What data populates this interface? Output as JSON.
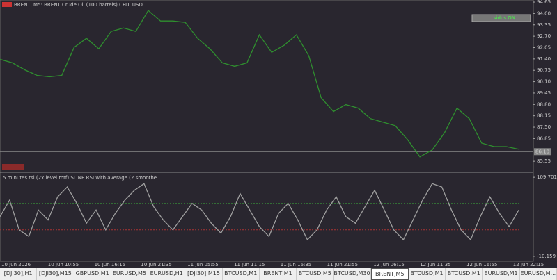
{
  "window_title": "BRENT, M5:  BRENT Crude Oil (100 barrels) CFD, USD",
  "button": "sidus  ON",
  "chart_data": [
    {
      "type": "line",
      "color": "#2f8f2f",
      "values": [
        91.38,
        91.18,
        90.78,
        90.46,
        90.38,
        90.46,
        92.06,
        92.58,
        91.98,
        92.97,
        93.17,
        92.97,
        94.17,
        93.57,
        93.57,
        93.49,
        92.58,
        91.98,
        91.18,
        90.98,
        91.18,
        92.78,
        91.78,
        92.18,
        92.78,
        91.58,
        89.19,
        88.39,
        88.79,
        88.59,
        87.99,
        87.79,
        87.59,
        86.79,
        85.8,
        86.2,
        87.19,
        88.59,
        87.99,
        86.59,
        86.39,
        86.39,
        86.24
      ],
      "ylim": [
        84.92,
        94.77
      ],
      "yticks": [
        94.65,
        {
          "value": 94.0,
          "label": "94.00"
        },
        93.35,
        {
          "value": 92.7,
          "label": "92.70"
        },
        92.05,
        {
          "value": 91.4,
          "label": "91.40"
        },
        90.75,
        {
          "value": 90.1,
          "label": "90.10"
        },
        89.45,
        {
          "value": 88.8,
          "label": "88.80"
        },
        88.15,
        {
          "value": 87.5,
          "label": "87.50"
        },
        86.85,
        85.55
      ],
      "current_price": {
        "value": 86.1,
        "label": "86.10"
      }
    },
    {
      "type": "line",
      "title": "5 minutes rsi (2x level mtf) SLINE RSI  with average (2 smoothe",
      "color": "#a0a0a0",
      "values": [
        50,
        75,
        30,
        20,
        60,
        45,
        80,
        95,
        70,
        40,
        60,
        30,
        55,
        75,
        90,
        100,
        65,
        45,
        30,
        50,
        70,
        60,
        40,
        25,
        50,
        85,
        60,
        35,
        20,
        55,
        70,
        45,
        15,
        30,
        60,
        80,
        50,
        40,
        65,
        90,
        60,
        30,
        15,
        45,
        75,
        100,
        95,
        60,
        30,
        15,
        50,
        80,
        55,
        35,
        60
      ],
      "ylim": [
        -17.6,
        117.2
      ],
      "yticks": [
        109.701,
        -10.159
      ],
      "levels": [
        70,
        30
      ]
    }
  ],
  "x_labels": [
    "10 Jun 2026",
    "10 Jun 10:55",
    "10 Jun 16:15",
    "10 Jun 21:35",
    "11 Jun 05:55",
    "11 Jun 11:15",
    "11 Jun 16:35",
    "11 Jun 21:55",
    "12 Jun 06:15",
    "12 Jun 11:35",
    "12 Jun 16:55",
    "12 Jun 22:15"
  ],
  "tabs": [
    "[DJI30],H1",
    "[DJI30],M15",
    "GBPUSD,M1",
    "EURUSD,M5",
    "EURUSD,H1",
    "[DJI30],M15",
    "BTCUSD,M1",
    "BRENT,M1",
    "BTCUSD,M5",
    "BTCUSD,M30",
    "BRENT,M5",
    "BTCUSD,M1",
    "BTCUSD,M1",
    "EURUSD,M1",
    "EURUSD,M..."
  ],
  "active_tab": 10
}
